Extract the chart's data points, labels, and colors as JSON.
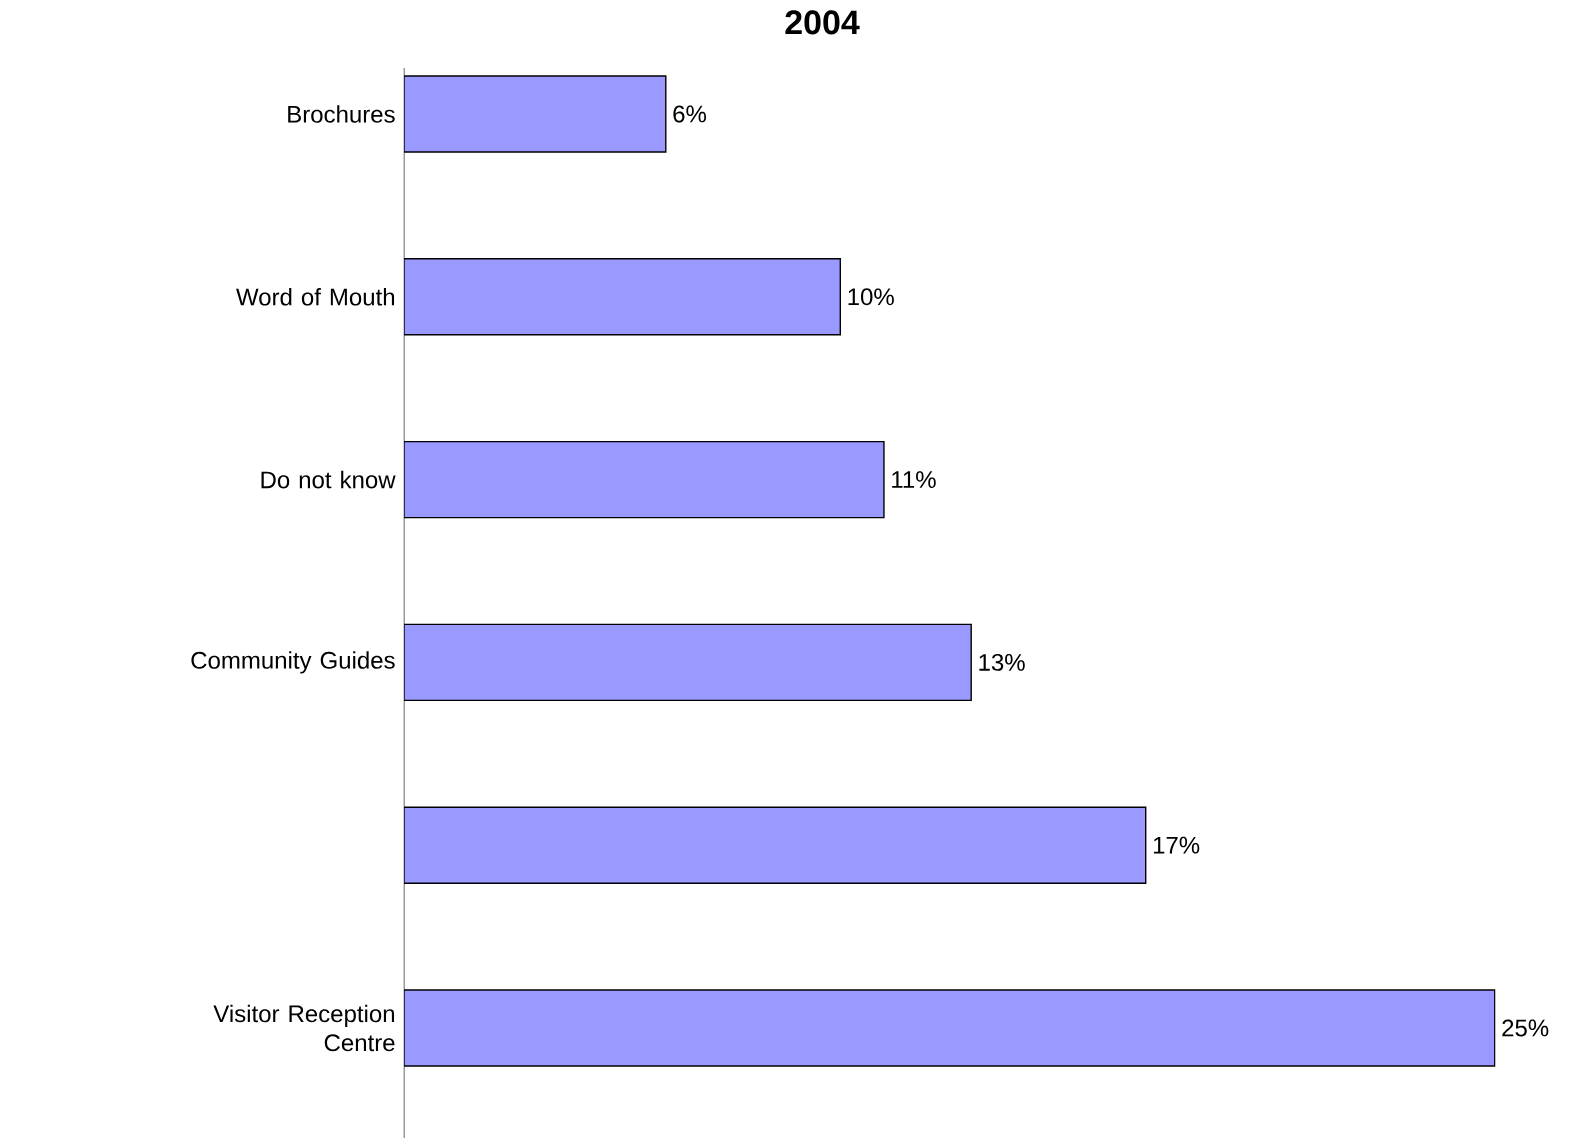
{
  "chart_data": {
    "type": "bar",
    "orientation": "horizontal",
    "title": "2004",
    "categories": [
      "Brochures",
      "Word of Mouth",
      "Do not know",
      "Community Guides",
      null,
      "Visitor Reception Centre"
    ],
    "values": [
      6,
      10,
      11,
      13,
      17,
      25
    ],
    "value_labels": [
      "6%",
      "10%",
      "11%",
      "13%",
      "17%",
      "25%"
    ],
    "color": "#9999ff"
  }
}
